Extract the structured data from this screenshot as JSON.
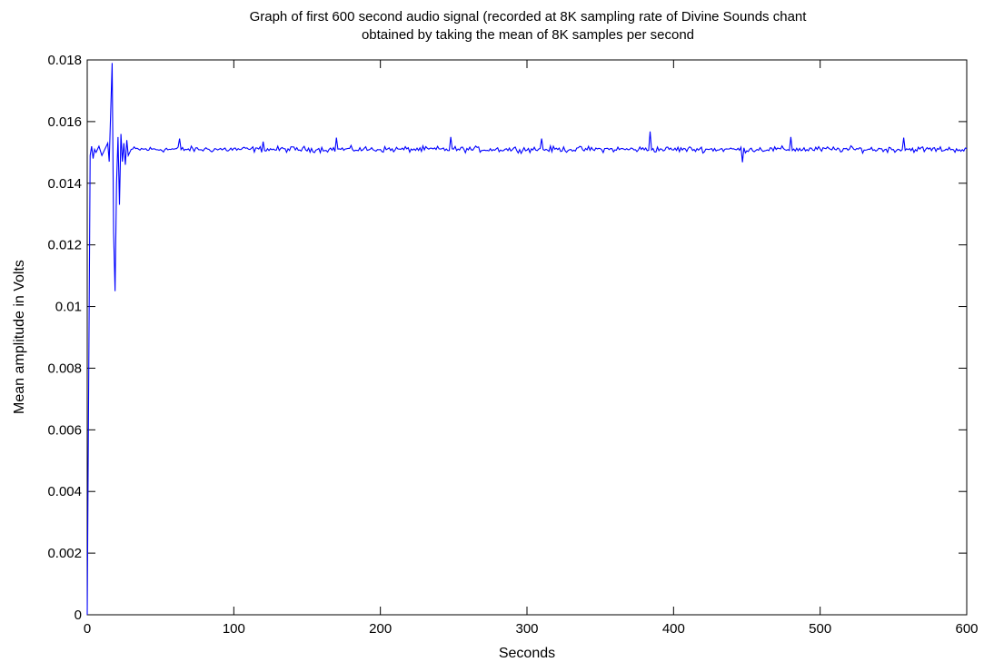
{
  "chart_data": {
    "type": "line",
    "title_lines": [
      "Graph of first 600 second audio signal (recorded at 8K sampling rate of Divine Sounds chant",
      "obtained by taking the mean of 8K samples per second"
    ],
    "xlabel": "Seconds",
    "ylabel": "Mean amplitude in Volts",
    "xlim": [
      0,
      600
    ],
    "ylim": [
      0,
      0.018
    ],
    "x_ticks": [
      0,
      100,
      200,
      300,
      400,
      500,
      600
    ],
    "x_tick_labels": [
      "0",
      "100",
      "200",
      "300",
      "400",
      "500",
      "600"
    ],
    "y_ticks": [
      0,
      0.002,
      0.004,
      0.006,
      0.008,
      0.01,
      0.012,
      0.014,
      0.016,
      0.018
    ],
    "y_tick_labels": [
      "0",
      "0.002",
      "0.004",
      "0.006",
      "0.008",
      "0.01",
      "0.012",
      "0.014",
      "0.016",
      "0.018"
    ],
    "grid": false,
    "series": [
      {
        "color": "#0000ff",
        "baseline": 0.0151,
        "noise_amplitude": 0.00014,
        "x": [
          0,
          1,
          2,
          3,
          4,
          5,
          6,
          8,
          10,
          12,
          14,
          15,
          16,
          17,
          18,
          19,
          20,
          21,
          22,
          23,
          24,
          25,
          26,
          27,
          28,
          30
        ],
        "y": [
          0,
          0.0075,
          0.0149,
          0.0152,
          0.0148,
          0.0151,
          0.015,
          0.0152,
          0.0149,
          0.0151,
          0.0153,
          0.0147,
          0.0163,
          0.0179,
          0.0124,
          0.0105,
          0.014,
          0.0155,
          0.0133,
          0.0156,
          0.0147,
          0.0153,
          0.0146,
          0.0154,
          0.0149,
          0.0151
        ],
        "spikes": [
          {
            "x": 63,
            "y": 0.01545
          },
          {
            "x": 120,
            "y": 0.01535
          },
          {
            "x": 170,
            "y": 0.01548
          },
          {
            "x": 248,
            "y": 0.0155
          },
          {
            "x": 310,
            "y": 0.01545
          },
          {
            "x": 384,
            "y": 0.01568
          },
          {
            "x": 447,
            "y": 0.01468
          },
          {
            "x": 480,
            "y": 0.0155
          },
          {
            "x": 557,
            "y": 0.01548
          }
        ]
      }
    ]
  }
}
